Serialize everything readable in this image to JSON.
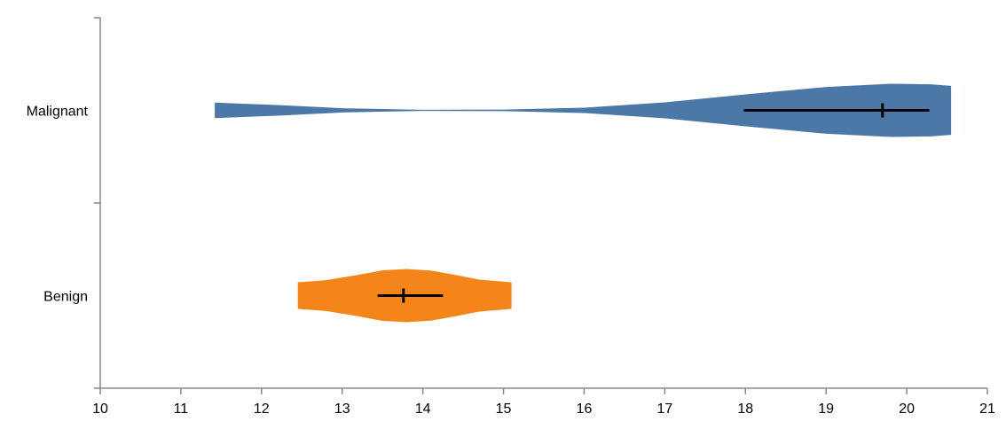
{
  "chart_data": {
    "type": "violin",
    "title": "",
    "xlabel": "",
    "ylabel": "",
    "xlim": [
      10,
      21
    ],
    "x_ticks": [
      "10",
      "11",
      "12",
      "13",
      "14",
      "15",
      "16",
      "17",
      "18",
      "19",
      "20",
      "21"
    ],
    "grid": false,
    "categories": [
      "Malignant",
      "Benign"
    ],
    "series": [
      {
        "category": "Malignant",
        "color": "#4c78a8",
        "min": 11.42,
        "max": 20.55,
        "median": 19.7,
        "ci_low": 17.98,
        "ci_high": 20.28,
        "density": [
          {
            "x": 11.42,
            "w": 0.29
          },
          {
            "x": 12.2,
            "w": 0.2
          },
          {
            "x": 13.0,
            "w": 0.08
          },
          {
            "x": 14.0,
            "w": 0.02
          },
          {
            "x": 15.0,
            "w": 0.03
          },
          {
            "x": 16.0,
            "w": 0.1
          },
          {
            "x": 17.0,
            "w": 0.3
          },
          {
            "x": 18.0,
            "w": 0.6
          },
          {
            "x": 19.0,
            "w": 0.88
          },
          {
            "x": 19.8,
            "w": 1.0
          },
          {
            "x": 20.3,
            "w": 0.98
          },
          {
            "x": 20.55,
            "w": 0.92
          }
        ]
      },
      {
        "category": "Benign",
        "color": "#f58518",
        "min": 12.45,
        "max": 15.1,
        "median": 13.76,
        "ci_low": 13.44,
        "ci_high": 14.25,
        "density": [
          {
            "x": 12.45,
            "w": 0.5
          },
          {
            "x": 12.8,
            "w": 0.58
          },
          {
            "x": 13.2,
            "w": 0.78
          },
          {
            "x": 13.5,
            "w": 0.95
          },
          {
            "x": 13.8,
            "w": 1.0
          },
          {
            "x": 14.1,
            "w": 0.94
          },
          {
            "x": 14.4,
            "w": 0.78
          },
          {
            "x": 14.7,
            "w": 0.6
          },
          {
            "x": 15.1,
            "w": 0.5
          }
        ]
      }
    ]
  }
}
